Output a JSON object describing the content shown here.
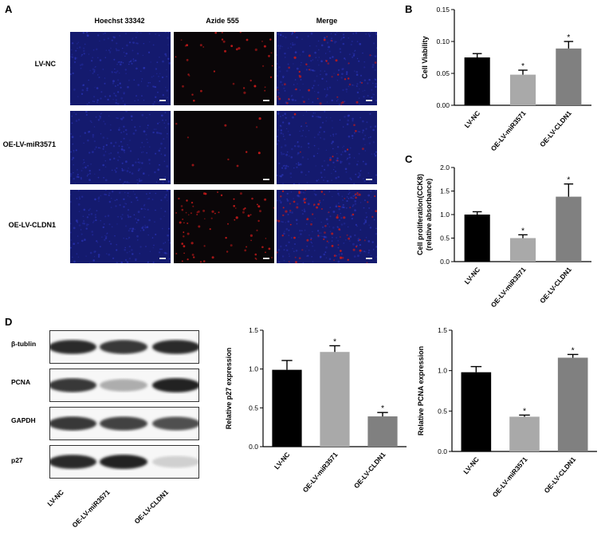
{
  "panel_labels": {
    "a": "A",
    "b": "B",
    "c": "C",
    "d": "D"
  },
  "microscopy": {
    "columns": [
      "Hoechst 33342",
      "Azide 555",
      "Merge"
    ],
    "rows": [
      "LV-NC",
      "OE-LV-miR3571",
      "OE-LV-CLDN1"
    ],
    "colors": {
      "hoechst": "#1a1f8f",
      "azide": "#c21a1a",
      "background": "#05051a"
    }
  },
  "western_blot": {
    "bands": [
      "β-tublin",
      "PCNA",
      "GAPDH",
      "p27"
    ],
    "lanes": [
      "LV-NC",
      "OE-LV-miR3571",
      "OE-LV-CLDN1"
    ],
    "intensity": [
      [
        0.9,
        0.85,
        0.9
      ],
      [
        0.85,
        0.35,
        0.95
      ],
      [
        0.85,
        0.8,
        0.75
      ],
      [
        0.9,
        0.95,
        0.2
      ]
    ]
  },
  "chart_data": [
    {
      "id": "B",
      "type": "bar",
      "categories": [
        "LV-NC",
        "OE-LV-miR3571",
        "OE-LV-CLDN1"
      ],
      "values": [
        0.075,
        0.048,
        0.089
      ],
      "errors": [
        0.006,
        0.007,
        0.011
      ],
      "significance": [
        "",
        "*",
        "*"
      ],
      "colors": [
        "#000000",
        "#a9a9a9",
        "#808080"
      ],
      "ylabel": "Cell Viability",
      "ylim": [
        0,
        0.15
      ],
      "yticks": [
        0.0,
        0.05,
        0.1,
        0.15
      ],
      "yticklabels": [
        "0.00",
        "0.05",
        "0.10",
        "0.15"
      ]
    },
    {
      "id": "C",
      "type": "bar",
      "categories": [
        "LV-NC",
        "OE-LV-miR3571",
        "OE-LV-CLDN1"
      ],
      "values": [
        1.0,
        0.5,
        1.38
      ],
      "errors": [
        0.06,
        0.07,
        0.27
      ],
      "significance": [
        "",
        "*",
        "*"
      ],
      "colors": [
        "#000000",
        "#a9a9a9",
        "#808080"
      ],
      "ylabel": "Cell proliferation(CCK8)",
      "ylabel2": "(relative absorbance)",
      "ylim": [
        0,
        2.0
      ],
      "yticks": [
        0.0,
        0.5,
        1.0,
        1.5,
        2.0
      ],
      "yticklabels": [
        "0.0",
        "0.5",
        "1.0",
        "1.5",
        "2.0"
      ]
    },
    {
      "id": "D-p27",
      "type": "bar",
      "categories": [
        "LV-NC",
        "OE-LV-miR3571",
        "OE-LV-CLDN1"
      ],
      "values": [
        0.99,
        1.22,
        0.39
      ],
      "errors": [
        0.12,
        0.08,
        0.05
      ],
      "significance": [
        "",
        "*",
        "*"
      ],
      "colors": [
        "#000000",
        "#a9a9a9",
        "#808080"
      ],
      "ylabel": "Relative p27 expression",
      "ylim": [
        0,
        1.5
      ],
      "yticks": [
        0.0,
        0.5,
        1.0,
        1.5
      ],
      "yticklabels": [
        "0.0",
        "0.5",
        "1.0",
        "1.5"
      ]
    },
    {
      "id": "D-PCNA",
      "type": "bar",
      "categories": [
        "LV-NC",
        "OE-LV-miR3571",
        "OE-LV-CLDN1"
      ],
      "values": [
        0.98,
        0.43,
        1.16
      ],
      "errors": [
        0.07,
        0.02,
        0.04
      ],
      "significance": [
        "",
        "*",
        "*"
      ],
      "colors": [
        "#000000",
        "#a9a9a9",
        "#808080"
      ],
      "ylabel": "Relative PCNA expression",
      "ylim": [
        0,
        1.5
      ],
      "yticks": [
        0.0,
        0.5,
        1.0,
        1.5
      ],
      "yticklabels": [
        "0.0",
        "0.5",
        "1.0",
        "1.5"
      ]
    }
  ]
}
